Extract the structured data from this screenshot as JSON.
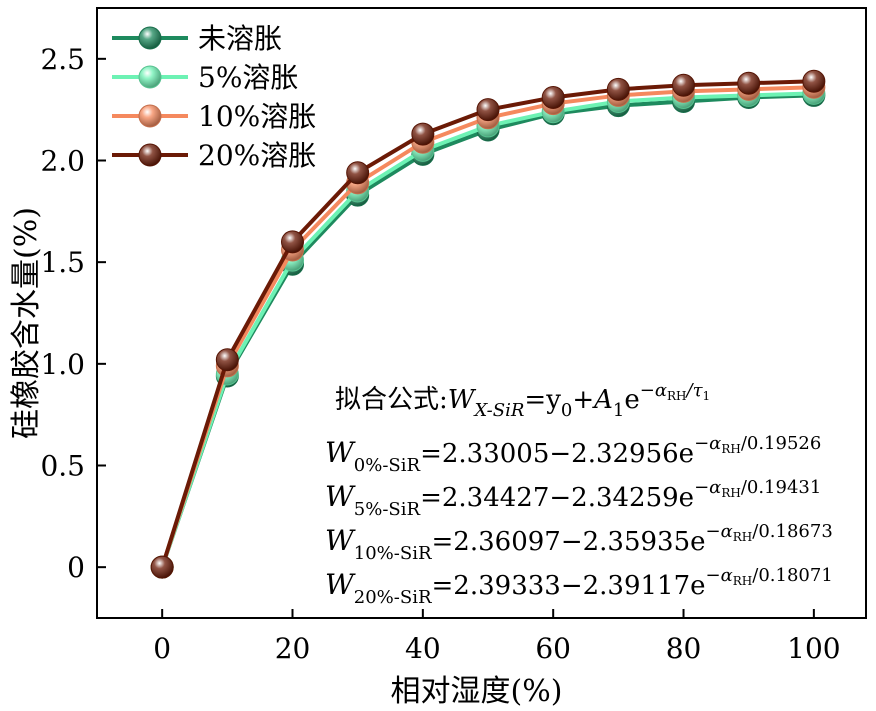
{
  "chart_data": {
    "type": "line",
    "title": "",
    "xlabel": "相对湿度(%)",
    "ylabel": "硅橡胶含水量(%)",
    "xlim": [
      -10,
      108
    ],
    "ylim": [
      -0.25,
      2.75
    ],
    "xticks": [
      0,
      20,
      40,
      60,
      80,
      100
    ],
    "xtick_labels": [
      "0",
      "20",
      "40",
      "60",
      "80",
      "100"
    ],
    "yticks": [
      0,
      0.5,
      1.0,
      1.5,
      2.0,
      2.5
    ],
    "ytick_labels": [
      "0",
      "0.5",
      "1.0",
      "1.5",
      "2.0",
      "2.5"
    ],
    "grid": false,
    "legend_position": "top-left",
    "x": [
      0,
      10,
      20,
      30,
      40,
      50,
      60,
      70,
      80,
      90,
      100
    ],
    "series": [
      {
        "name": "未溶胀",
        "color": "#1e8a5e",
        "values": [
          0,
          0.94,
          1.49,
          1.83,
          2.03,
          2.15,
          2.23,
          2.27,
          2.29,
          2.31,
          2.32
        ]
      },
      {
        "name": "5%溶胀",
        "color": "#6df2b4",
        "values": [
          0,
          0.95,
          1.51,
          1.85,
          2.05,
          2.17,
          2.24,
          2.29,
          2.31,
          2.32,
          2.33
        ]
      },
      {
        "name": "10%溶胀",
        "color": "#f5895e",
        "values": [
          0,
          0.99,
          1.56,
          1.89,
          2.09,
          2.21,
          2.28,
          2.32,
          2.34,
          2.35,
          2.36
        ]
      },
      {
        "name": "20%溶胀",
        "color": "#6b1a06",
        "values": [
          0,
          1.02,
          1.6,
          1.94,
          2.13,
          2.25,
          2.31,
          2.35,
          2.37,
          2.38,
          2.39
        ]
      }
    ],
    "annotations": {
      "fit_prefix": "拟合公式:",
      "fit_W": "W",
      "fit_W_sub": "X-SiR",
      "fit_eq": "=y",
      "fit_y_sub": "0",
      "fit_plus": "+A",
      "fit_A_sub": "1",
      "fit_e": "e",
      "fit_exponent": "−α",
      "fit_exp_sub": "RH",
      "fit_exp_tail": "/τ",
      "fit_tau_sub": "1",
      "equations": [
        {
          "W": "W",
          "sub": "0%-SiR",
          "body": "=2.33005−2.32956e",
          "exp": "−α",
          "exp_sub": "RH",
          "exp_tail": "/0.19526"
        },
        {
          "W": "W",
          "sub": "5%-SiR",
          "body": "=2.34427−2.34259e",
          "exp": "−α",
          "exp_sub": "RH",
          "exp_tail": "/0.19431"
        },
        {
          "W": "W",
          "sub": "10%-SiR",
          "body": "=2.36097−2.35935e",
          "exp": "−α",
          "exp_sub": "RH",
          "exp_tail": "/0.18673"
        },
        {
          "W": "W",
          "sub": "20%-SiR",
          "body": "=2.39333−2.39117e",
          "exp": "−α",
          "exp_sub": "RH",
          "exp_tail": "/0.18071"
        }
      ]
    }
  }
}
